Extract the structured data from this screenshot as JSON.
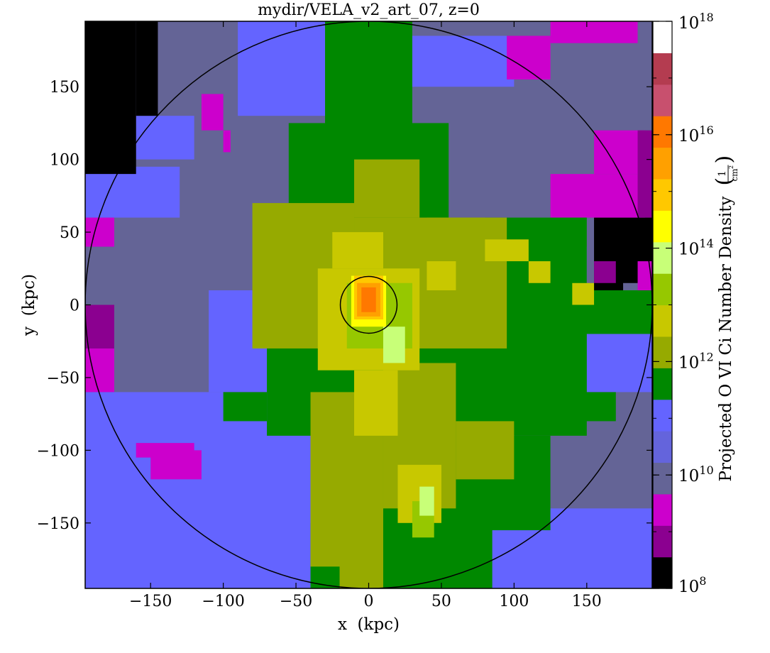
{
  "chart_data": {
    "type": "heatmap",
    "title": "mydir/VELA_v2_art_07, z=0",
    "xlabel": "x  (kpc)",
    "ylabel": "y  (kpc)",
    "xlim": [
      -195,
      195
    ],
    "ylim": [
      -195,
      195
    ],
    "xticks": [
      -150,
      -100,
      -50,
      0,
      50,
      100,
      150
    ],
    "yticks": [
      -150,
      -100,
      -50,
      0,
      50,
      100,
      150
    ],
    "xtick_labels": [
      "−150",
      "−100",
      "−50",
      "0",
      "50",
      "100",
      "150"
    ],
    "ytick_labels": [
      "−150",
      "−100",
      "−50",
      "0",
      "50",
      "100",
      "150"
    ],
    "colorbar": {
      "label": "Projected O VI Ci Number Density",
      "unit_num": "1",
      "unit_den": "cm",
      "unit_den_exp": "2",
      "scale": "log",
      "range": [
        100000000.0,
        1e+18
      ],
      "tick_labels": [
        {
          "base": "10",
          "exp": "8",
          "value": 8
        },
        {
          "base": "10",
          "exp": "10",
          "value": 10
        },
        {
          "base": "10",
          "exp": "12",
          "value": 12
        },
        {
          "base": "10",
          "exp": "14",
          "value": 14
        },
        {
          "base": "10",
          "exp": "16",
          "value": 16
        },
        {
          "base": "10",
          "exp": "18",
          "value": 18
        }
      ],
      "colors": [
        "#000000",
        "#8b0090",
        "#cc00cc",
        "#646496",
        "#6464dc",
        "#6464ff",
        "#008800",
        "#96aa00",
        "#c8c800",
        "#96c800",
        "#c8ff78",
        "#ffff00",
        "#ffc800",
        "#ffa000",
        "#ff7800",
        "#c8506e",
        "#b43c50",
        "#ffffff"
      ]
    },
    "circles": [
      {
        "name": "virial-radius",
        "cx": 0,
        "cy": 0,
        "r": 195
      },
      {
        "name": "inner-radius",
        "cx": 0,
        "cy": 0,
        "r": 19.5
      }
    ],
    "regions": [
      {
        "color": "#646496",
        "x": [
          -195,
          195
        ],
        "y": [
          -195,
          195
        ]
      },
      {
        "color": "#6464ff",
        "x": [
          -90,
          30
        ],
        "y": [
          130,
          195
        ]
      },
      {
        "color": "#6464ff",
        "x": [
          -195,
          -130
        ],
        "y": [
          60,
          95
        ]
      },
      {
        "color": "#6464ff",
        "x": [
          30,
          100
        ],
        "y": [
          150,
          185
        ]
      },
      {
        "color": "#6464ff",
        "x": [
          -195,
          -40
        ],
        "y": [
          -195,
          -60
        ]
      },
      {
        "color": "#6464ff",
        "x": [
          -70,
          -10
        ],
        "y": [
          -195,
          -120
        ]
      },
      {
        "color": "#6464ff",
        "x": [
          60,
          195
        ],
        "y": [
          -195,
          -140
        ]
      },
      {
        "color": "#6464ff",
        "x": [
          90,
          150
        ],
        "y": [
          -20,
          40
        ]
      },
      {
        "color": "#6464ff",
        "x": [
          150,
          195
        ],
        "y": [
          -60,
          0
        ]
      },
      {
        "color": "#6464ff",
        "x": [
          -110,
          -60
        ],
        "y": [
          -60,
          10
        ]
      },
      {
        "color": "#6464ff",
        "x": [
          -160,
          -120
        ],
        "y": [
          100,
          130
        ]
      },
      {
        "color": "#000000",
        "x": [
          -195,
          -160
        ],
        "y": [
          90,
          195
        ]
      },
      {
        "color": "#000000",
        "x": [
          -160,
          -145
        ],
        "y": [
          130,
          195
        ]
      },
      {
        "color": "#000000",
        "x": [
          155,
          195
        ],
        "y": [
          15,
          60
        ]
      },
      {
        "color": "#000000",
        "x": [
          155,
          175
        ],
        "y": [
          0,
          20
        ]
      },
      {
        "color": "#cc00cc",
        "x": [
          -195,
          -175
        ],
        "y": [
          40,
          60
        ]
      },
      {
        "color": "#cc00cc",
        "x": [
          -195,
          -175
        ],
        "y": [
          -60,
          -30
        ]
      },
      {
        "color": "#8b0090",
        "x": [
          -195,
          -175
        ],
        "y": [
          -30,
          0
        ]
      },
      {
        "color": "#cc00cc",
        "x": [
          -150,
          -115
        ],
        "y": [
          -120,
          -100
        ]
      },
      {
        "color": "#cc00cc",
        "x": [
          -160,
          -120
        ],
        "y": [
          -105,
          -95
        ]
      },
      {
        "color": "#cc00cc",
        "x": [
          95,
          125
        ],
        "y": [
          155,
          185
        ]
      },
      {
        "color": "#cc00cc",
        "x": [
          125,
          185
        ],
        "y": [
          180,
          195
        ]
      },
      {
        "color": "#cc00cc",
        "x": [
          125,
          190
        ],
        "y": [
          60,
          90
        ]
      },
      {
        "color": "#cc00cc",
        "x": [
          155,
          190
        ],
        "y": [
          90,
          120
        ]
      },
      {
        "color": "#8b0090",
        "x": [
          185,
          195
        ],
        "y": [
          60,
          120
        ]
      },
      {
        "color": "#8b0090",
        "x": [
          155,
          170
        ],
        "y": [
          15,
          30
        ]
      },
      {
        "color": "#cc00cc",
        "x": [
          185,
          195
        ],
        "y": [
          0,
          30
        ]
      },
      {
        "color": "#cc00cc",
        "x": [
          -115,
          -100
        ],
        "y": [
          120,
          145
        ]
      },
      {
        "color": "#cc00cc",
        "x": [
          -100,
          -95
        ],
        "y": [
          105,
          120
        ]
      },
      {
        "color": "#008800",
        "x": [
          -70,
          150
        ],
        "y": [
          -90,
          60
        ]
      },
      {
        "color": "#008800",
        "x": [
          -55,
          55
        ],
        "y": [
          60,
          125
        ]
      },
      {
        "color": "#008800",
        "x": [
          -30,
          30
        ],
        "y": [
          120,
          195
        ]
      },
      {
        "color": "#008800",
        "x": [
          -35,
          125
        ],
        "y": [
          -155,
          -90
        ]
      },
      {
        "color": "#008800",
        "x": [
          -40,
          85
        ],
        "y": [
          -195,
          -150
        ]
      },
      {
        "color": "#008800",
        "x": [
          125,
          195
        ],
        "y": [
          -20,
          10
        ]
      },
      {
        "color": "#008800",
        "x": [
          145,
          170
        ],
        "y": [
          -80,
          -60
        ]
      },
      {
        "color": "#008800",
        "x": [
          -100,
          -70
        ],
        "y": [
          -80,
          -60
        ]
      },
      {
        "color": "#96aa00",
        "x": [
          -10,
          95
        ],
        "y": [
          -30,
          60
        ]
      },
      {
        "color": "#96aa00",
        "x": [
          -80,
          -10
        ],
        "y": [
          -30,
          70
        ]
      },
      {
        "color": "#96aa00",
        "x": [
          -10,
          35
        ],
        "y": [
          60,
          100
        ]
      },
      {
        "color": "#96aa00",
        "x": [
          40,
          80
        ],
        "y": [
          30,
          60
        ]
      },
      {
        "color": "#96aa00",
        "x": [
          -40,
          10
        ],
        "y": [
          -180,
          -60
        ]
      },
      {
        "color": "#96aa00",
        "x": [
          10,
          60
        ],
        "y": [
          -140,
          -40
        ]
      },
      {
        "color": "#96aa00",
        "x": [
          60,
          100
        ],
        "y": [
          -120,
          -80
        ]
      },
      {
        "color": "#96aa00",
        "x": [
          -20,
          10
        ],
        "y": [
          -195,
          -170
        ]
      },
      {
        "color": "#c8c800",
        "x": [
          -35,
          35
        ],
        "y": [
          -45,
          25
        ]
      },
      {
        "color": "#c8c800",
        "x": [
          -25,
          10
        ],
        "y": [
          25,
          50
        ]
      },
      {
        "color": "#c8c800",
        "x": [
          40,
          60
        ],
        "y": [
          10,
          30
        ]
      },
      {
        "color": "#c8c800",
        "x": [
          80,
          110
        ],
        "y": [
          30,
          45
        ]
      },
      {
        "color": "#c8c800",
        "x": [
          110,
          125
        ],
        "y": [
          15,
          30
        ]
      },
      {
        "color": "#c8c800",
        "x": [
          140,
          155
        ],
        "y": [
          0,
          15
        ]
      },
      {
        "color": "#c8c800",
        "x": [
          -10,
          20
        ],
        "y": [
          -90,
          -45
        ]
      },
      {
        "color": "#c8c800",
        "x": [
          20,
          50
        ],
        "y": [
          -150,
          -110
        ]
      },
      {
        "color": "#96c800",
        "x": [
          -15,
          30
        ],
        "y": [
          -30,
          15
        ]
      },
      {
        "color": "#96c800",
        "x": [
          30,
          45
        ],
        "y": [
          -160,
          -135
        ]
      },
      {
        "color": "#c8ff78",
        "x": [
          10,
          25
        ],
        "y": [
          -40,
          -15
        ]
      },
      {
        "color": "#c8ff78",
        "x": [
          35,
          45
        ],
        "y": [
          -145,
          -125
        ]
      },
      {
        "color": "#ffff00",
        "x": [
          -12,
          12
        ],
        "y": [
          -15,
          20
        ]
      },
      {
        "color": "#ffc800",
        "x": [
          -10,
          10
        ],
        "y": [
          -10,
          20
        ]
      },
      {
        "color": "#ffa000",
        "x": [
          -8,
          8
        ],
        "y": [
          -8,
          15
        ]
      },
      {
        "color": "#ff7800",
        "x": [
          -5,
          5
        ],
        "y": [
          -5,
          12
        ]
      }
    ]
  }
}
